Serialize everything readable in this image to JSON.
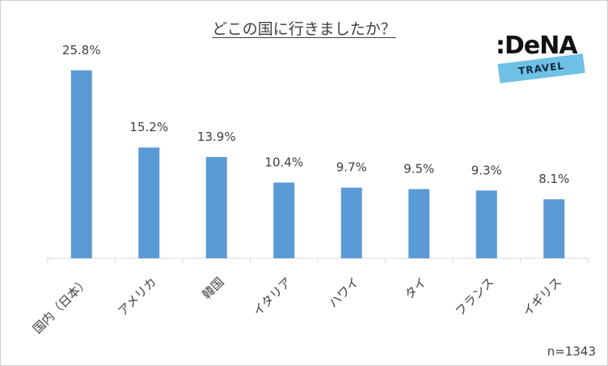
{
  "logo": {
    "word": ":DeNA",
    "band": "TRAVEL"
  },
  "note": "n=1343",
  "chart_data": {
    "type": "bar",
    "title": "どこの国に行きましたか？",
    "categories": [
      "国内（日本）",
      "アメリカ",
      "韓国",
      "イタリア",
      "ハワイ",
      "タイ",
      "フランス",
      "イギリス"
    ],
    "values": [
      25.8,
      15.2,
      13.9,
      10.4,
      9.7,
      9.5,
      9.3,
      8.1
    ],
    "labels": [
      "25.8%",
      "15.2%",
      "13.9%",
      "10.4%",
      "9.7%",
      "9.5%",
      "9.3%",
      "8.1%"
    ],
    "value_unit": "%",
    "ylim": [
      0,
      30
    ],
    "grid": false,
    "legend": "none",
    "colors": {
      "bar": "#5b9bd5"
    }
  }
}
